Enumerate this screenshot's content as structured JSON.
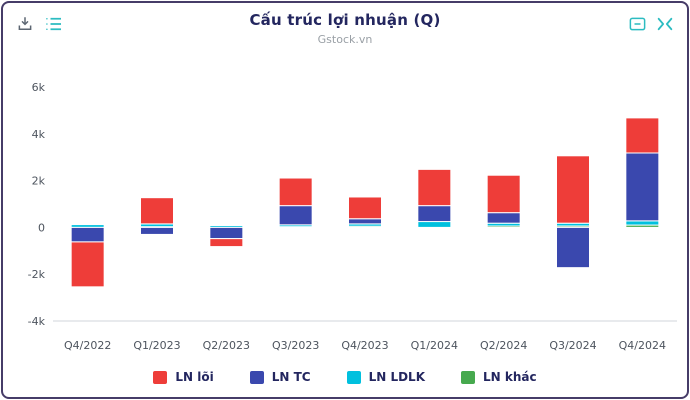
{
  "header": {
    "title": "Cấu trúc lợi nhuận (Q)",
    "subtitle": "Gstock.vn"
  },
  "toolbar": {
    "download_icon": "download-icon",
    "list_icon": "list-icon",
    "collapse_icon": "collapse-box-icon",
    "fullscreen_icon": "fullscreen-toggle-icon"
  },
  "colors": {
    "border": "#463c68",
    "teal_icon": "#2cbcc1",
    "gray_icon": "#5c6672",
    "title_text": "#23265f",
    "axis_text": "#4d545e",
    "axis_line": "#d2d5db",
    "red": "#ee3d39",
    "blue": "#3a48ae",
    "cyan": "#00c0de",
    "green": "#46a94e"
  },
  "chart_data": {
    "type": "bar",
    "stacked": true,
    "title": "Cấu trúc lợi nhuận (Q)",
    "subtitle": "Gstock.vn",
    "grid": false,
    "legend_position": "bottom",
    "categories": [
      "Q4/2022",
      "Q1/2023",
      "Q2/2023",
      "Q3/2023",
      "Q4/2023",
      "Q1/2024",
      "Q2/2024",
      "Q3/2024",
      "Q4/2024"
    ],
    "series": [
      {
        "name": "LN lõi",
        "color": "#ee3d39",
        "values": [
          -1920,
          1120,
          -340,
          1180,
          930,
          1550,
          1600,
          2880,
          1500
        ]
      },
      {
        "name": "LN TC",
        "color": "#3a48ae",
        "values": [
          -620,
          -300,
          -480,
          820,
          220,
          680,
          450,
          -1720,
          2900
        ]
      },
      {
        "name": "LN LDLK",
        "color": "#00c0de",
        "values": [
          120,
          120,
          80,
          80,
          100,
          250,
          120,
          120,
          180
        ]
      },
      {
        "name": "LN khác",
        "color": "#46a94e",
        "values": [
          0,
          30,
          0,
          30,
          50,
          0,
          60,
          60,
          100
        ]
      }
    ],
    "stack_order_bottom_to_top": [
      "LN khác",
      "LN LDLK",
      "LN TC",
      "LN lõi"
    ],
    "ylim": [
      -4000,
      6000
    ],
    "ytick_values": [
      6000,
      4000,
      2000,
      0,
      -2000,
      -4000
    ],
    "ytick_labels": [
      "6k",
      "4k",
      "2k",
      "0",
      "-2k",
      "-4k"
    ]
  }
}
